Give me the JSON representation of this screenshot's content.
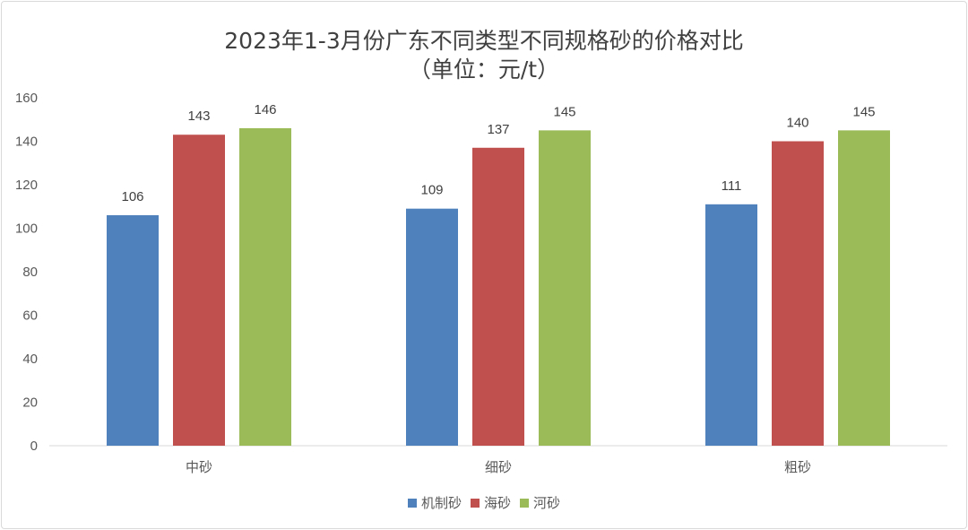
{
  "chart_data": {
    "type": "bar",
    "title": "2023年1-3月份广东不同类型不同规格砂的价格对比",
    "subtitle": "（单位：元/t）",
    "categories": [
      "中砂",
      "细砂",
      "粗砂"
    ],
    "series": [
      {
        "name": "机制砂",
        "color": "#4f81bd",
        "values": [
          106,
          109,
          111
        ]
      },
      {
        "name": "海砂",
        "color": "#c0504d",
        "values": [
          143,
          137,
          140
        ]
      },
      {
        "name": "河砂",
        "color": "#9bbb59",
        "values": [
          146,
          145,
          145
        ]
      }
    ],
    "ylim": [
      0,
      160
    ],
    "yticks": [
      "0",
      "20",
      "40",
      "60",
      "80",
      "100",
      "120",
      "140",
      "160"
    ],
    "grid": false,
    "legend": "bottom",
    "data_labels": true
  }
}
